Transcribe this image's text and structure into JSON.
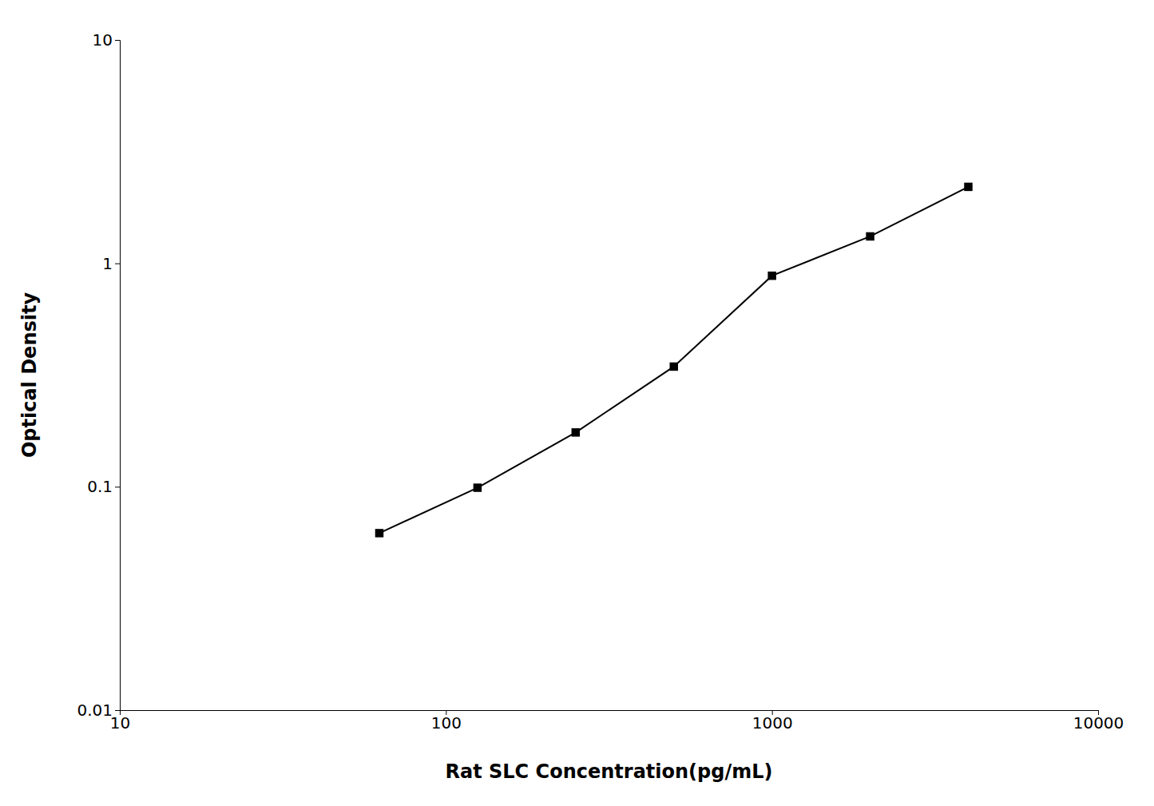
{
  "chart_data": {
    "type": "line",
    "x": [
      62.5,
      125,
      250,
      500,
      1000,
      2000,
      4000
    ],
    "values": [
      0.062,
      0.099,
      0.175,
      0.345,
      0.88,
      1.32,
      2.2
    ],
    "xlabel": "Rat SLC Concentration(pg/mL)",
    "ylabel": "Optical Density",
    "color": "#000000",
    "marker": "square",
    "log": true,
    "xlim": [
      10,
      10000
    ],
    "ylim": [
      0.01,
      10
    ],
    "xticks": [
      10,
      100,
      1000,
      10000
    ],
    "yticks": [
      0.01,
      0.1,
      1,
      10
    ],
    "grid": false
  }
}
